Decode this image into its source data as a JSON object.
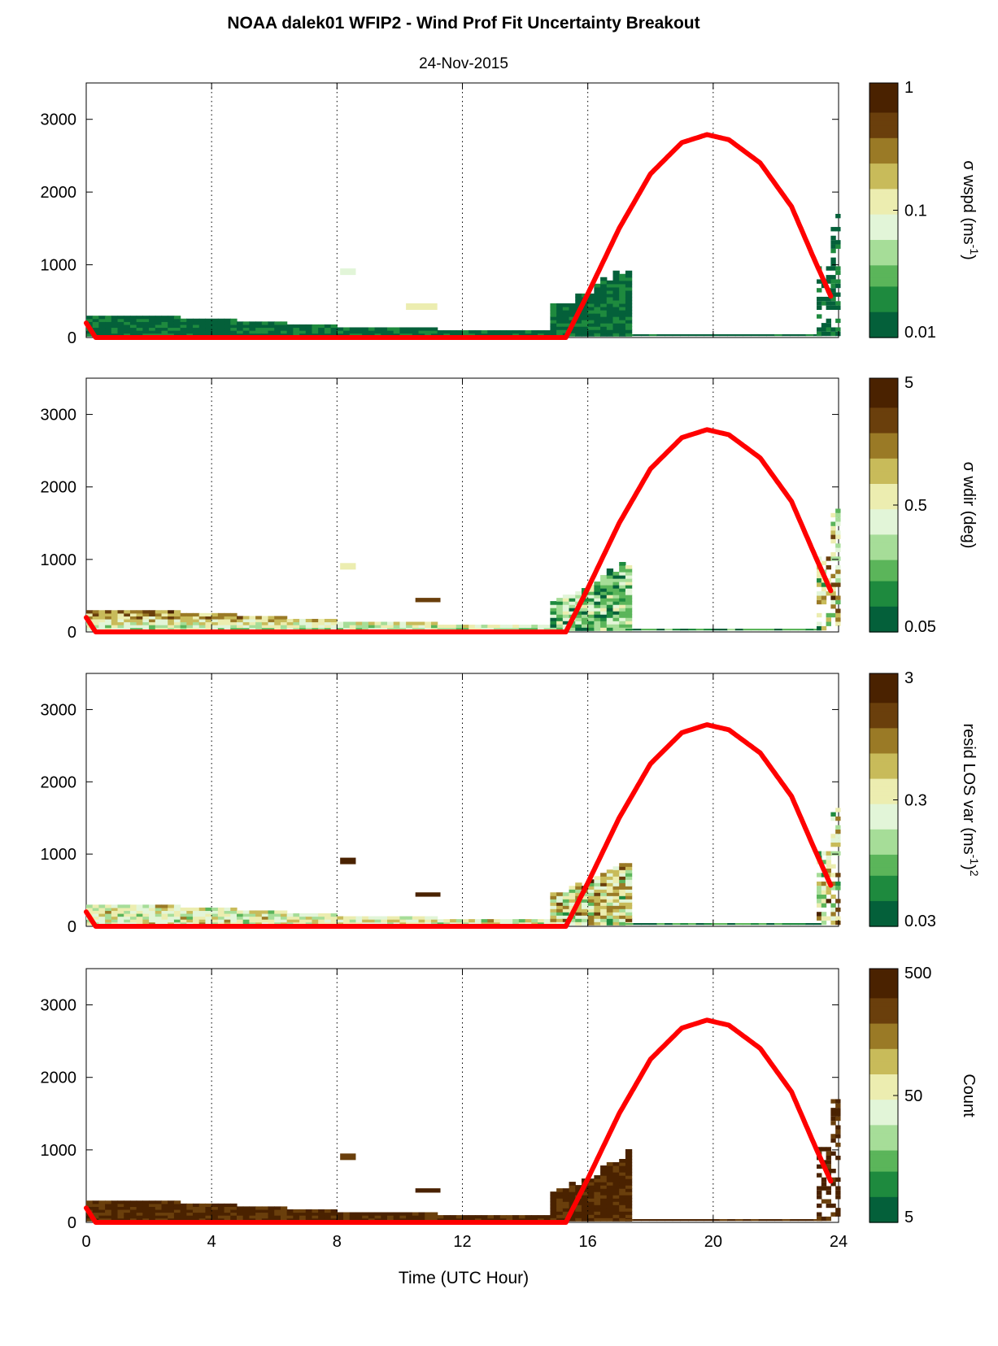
{
  "figure": {
    "title": "NOAA dalek01 WFIP2 - Wind Prof Fit Uncertainty Breakout",
    "subtitle": "24-Nov-2015",
    "xlabel": "Time (UTC Hour)"
  },
  "colors": {
    "curve": "#ff0000",
    "colormap": [
      "#04603a",
      "#1e8a3e",
      "#5bb55a",
      "#a6dd98",
      "#e2f5d8",
      "#ecedb0",
      "#c8bb5a",
      "#9a7a26",
      "#6a3f0c",
      "#4a2200"
    ]
  },
  "chart_data": [
    {
      "type": "heatmap",
      "xlim": [
        0,
        24
      ],
      "ylim": [
        0,
        3500
      ],
      "xticks": [
        0,
        4,
        8,
        12,
        16,
        20,
        24
      ],
      "yticks": [
        0,
        1000,
        2000,
        3000
      ],
      "grid": "vertical dotted at x = 4, 8, 12, 16, 20",
      "colorbar": {
        "label": "σ wspd (ms",
        "label_sup": "-1",
        "label_end": ")",
        "ticks": [
          "1",
          "0.1",
          "0.01"
        ],
        "log": true
      },
      "palette": "green",
      "fill_level": 0.05,
      "patches": [
        {
          "x": 8.1,
          "x2": 8.6,
          "y": 860,
          "y2": 950,
          "v": 0.45
        },
        {
          "x": 10.2,
          "x2": 11.2,
          "y": 380,
          "y2": 470,
          "v": 0.5
        }
      ]
    },
    {
      "type": "heatmap",
      "xlim": [
        0,
        24
      ],
      "ylim": [
        0,
        3500
      ],
      "xticks": [
        0,
        4,
        8,
        12,
        16,
        20,
        24
      ],
      "yticks": [
        0,
        1000,
        2000,
        3000
      ],
      "grid": "vertical dotted at x = 4, 8, 12, 16, 20",
      "colorbar": {
        "label": "σ wdir (deg)",
        "label_sup": "",
        "label_end": "",
        "ticks": [
          "5",
          "0.5",
          "0.05"
        ],
        "log": true
      },
      "palette": "mixed",
      "fill_level": 0.25,
      "patches": [
        {
          "x": 8.1,
          "x2": 8.6,
          "y": 860,
          "y2": 950,
          "v": 0.5
        },
        {
          "x": 10.5,
          "x2": 11.3,
          "y": 410,
          "y2": 470,
          "v": 0.85
        }
      ]
    },
    {
      "type": "heatmap",
      "xlim": [
        0,
        24
      ],
      "ylim": [
        0,
        3500
      ],
      "xticks": [
        0,
        4,
        8,
        12,
        16,
        20,
        24
      ],
      "yticks": [
        0,
        1000,
        2000,
        3000
      ],
      "grid": "vertical dotted at x = 4, 8, 12, 16, 20",
      "colorbar": {
        "label": "resid LOS var (ms",
        "label_sup": "-1",
        "label_end": ")",
        "label_sup2": "2",
        "ticks": [
          "3",
          "0.3",
          "0.03"
        ],
        "log": true
      },
      "palette": "mixed",
      "fill_level": 0.45,
      "patches": [
        {
          "x": 8.1,
          "x2": 8.6,
          "y": 860,
          "y2": 950,
          "v": 0.9
        },
        {
          "x": 10.5,
          "x2": 11.3,
          "y": 410,
          "y2": 470,
          "v": 0.95
        }
      ]
    },
    {
      "type": "heatmap",
      "xlim": [
        0,
        24
      ],
      "ylim": [
        0,
        3500
      ],
      "xticks": [
        0,
        4,
        8,
        12,
        16,
        20,
        24
      ],
      "yticks": [
        0,
        1000,
        2000,
        3000
      ],
      "xticklabels": [
        "0",
        "4",
        "8",
        "12",
        "16",
        "20",
        "24"
      ],
      "grid": "vertical dotted at x = 4, 8, 12, 16, 20",
      "colorbar": {
        "label": "Count",
        "label_sup": "",
        "label_end": "",
        "ticks": [
          "500",
          "50",
          "5"
        ],
        "log": true
      },
      "palette": "brown",
      "fill_level": 0.97,
      "patches": [
        {
          "x": 8.1,
          "x2": 8.6,
          "y": 860,
          "y2": 950,
          "v": 0.85
        },
        {
          "x": 10.5,
          "x2": 11.3,
          "y": 410,
          "y2": 470,
          "v": 0.95
        }
      ]
    }
  ],
  "shared_series": {
    "name": "",
    "note_ticks": "colorbar ticks listed top to bottom",
    "red_curve": {
      "x": [
        0,
        0.3,
        15.3,
        16,
        17,
        18,
        19,
        19.8,
        20.5,
        21.5,
        22.5,
        23.2,
        23.8
      ],
      "y": [
        200,
        0,
        0,
        600,
        1500,
        2250,
        2680,
        2790,
        2720,
        2400,
        1800,
        1100,
        520
      ]
    },
    "boundary_layer_top": {
      "x": [
        0,
        2,
        4,
        6,
        8,
        10,
        12,
        14,
        15.2
      ],
      "y": [
        300,
        280,
        240,
        190,
        140,
        110,
        90,
        70,
        60
      ]
    },
    "afternoon_top": {
      "x": [
        14.8,
        15.3,
        16,
        16.5,
        17.2
      ],
      "y": [
        450,
        520,
        650,
        850,
        1000
      ]
    }
  }
}
